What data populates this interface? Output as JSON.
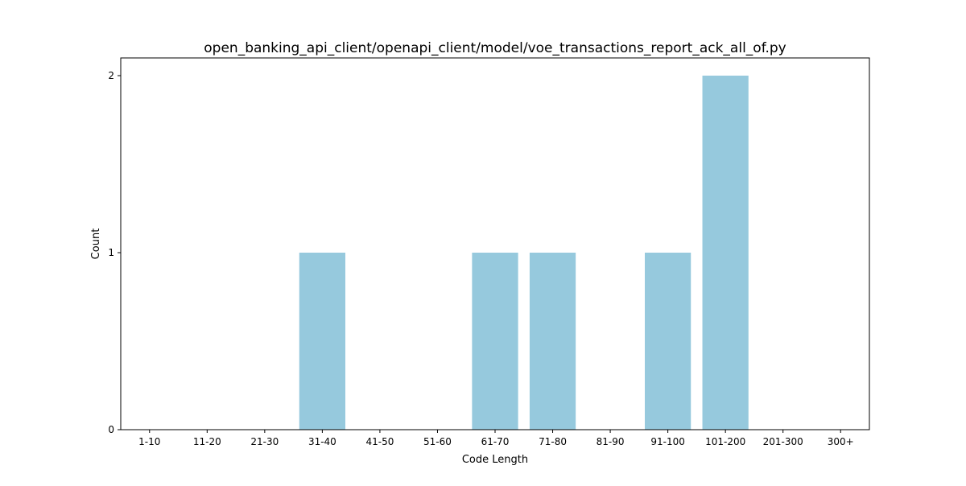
{
  "chart_data": {
    "type": "bar",
    "title": "open_banking_api_client/openapi_client/model/voe_transactions_report_ack_all_of.py",
    "xlabel": "Code Length",
    "ylabel": "Count",
    "categories": [
      "1-10",
      "11-20",
      "21-30",
      "31-40",
      "41-50",
      "51-60",
      "61-70",
      "71-80",
      "81-90",
      "91-100",
      "101-200",
      "201-300",
      "300+"
    ],
    "values": [
      0,
      0,
      0,
      1,
      0,
      0,
      1,
      1,
      0,
      1,
      2,
      0,
      0
    ],
    "yticks": [
      0,
      1,
      2
    ],
    "ylim": [
      0,
      2.1
    ],
    "grid": false,
    "bar_color": "#96c9dd"
  }
}
